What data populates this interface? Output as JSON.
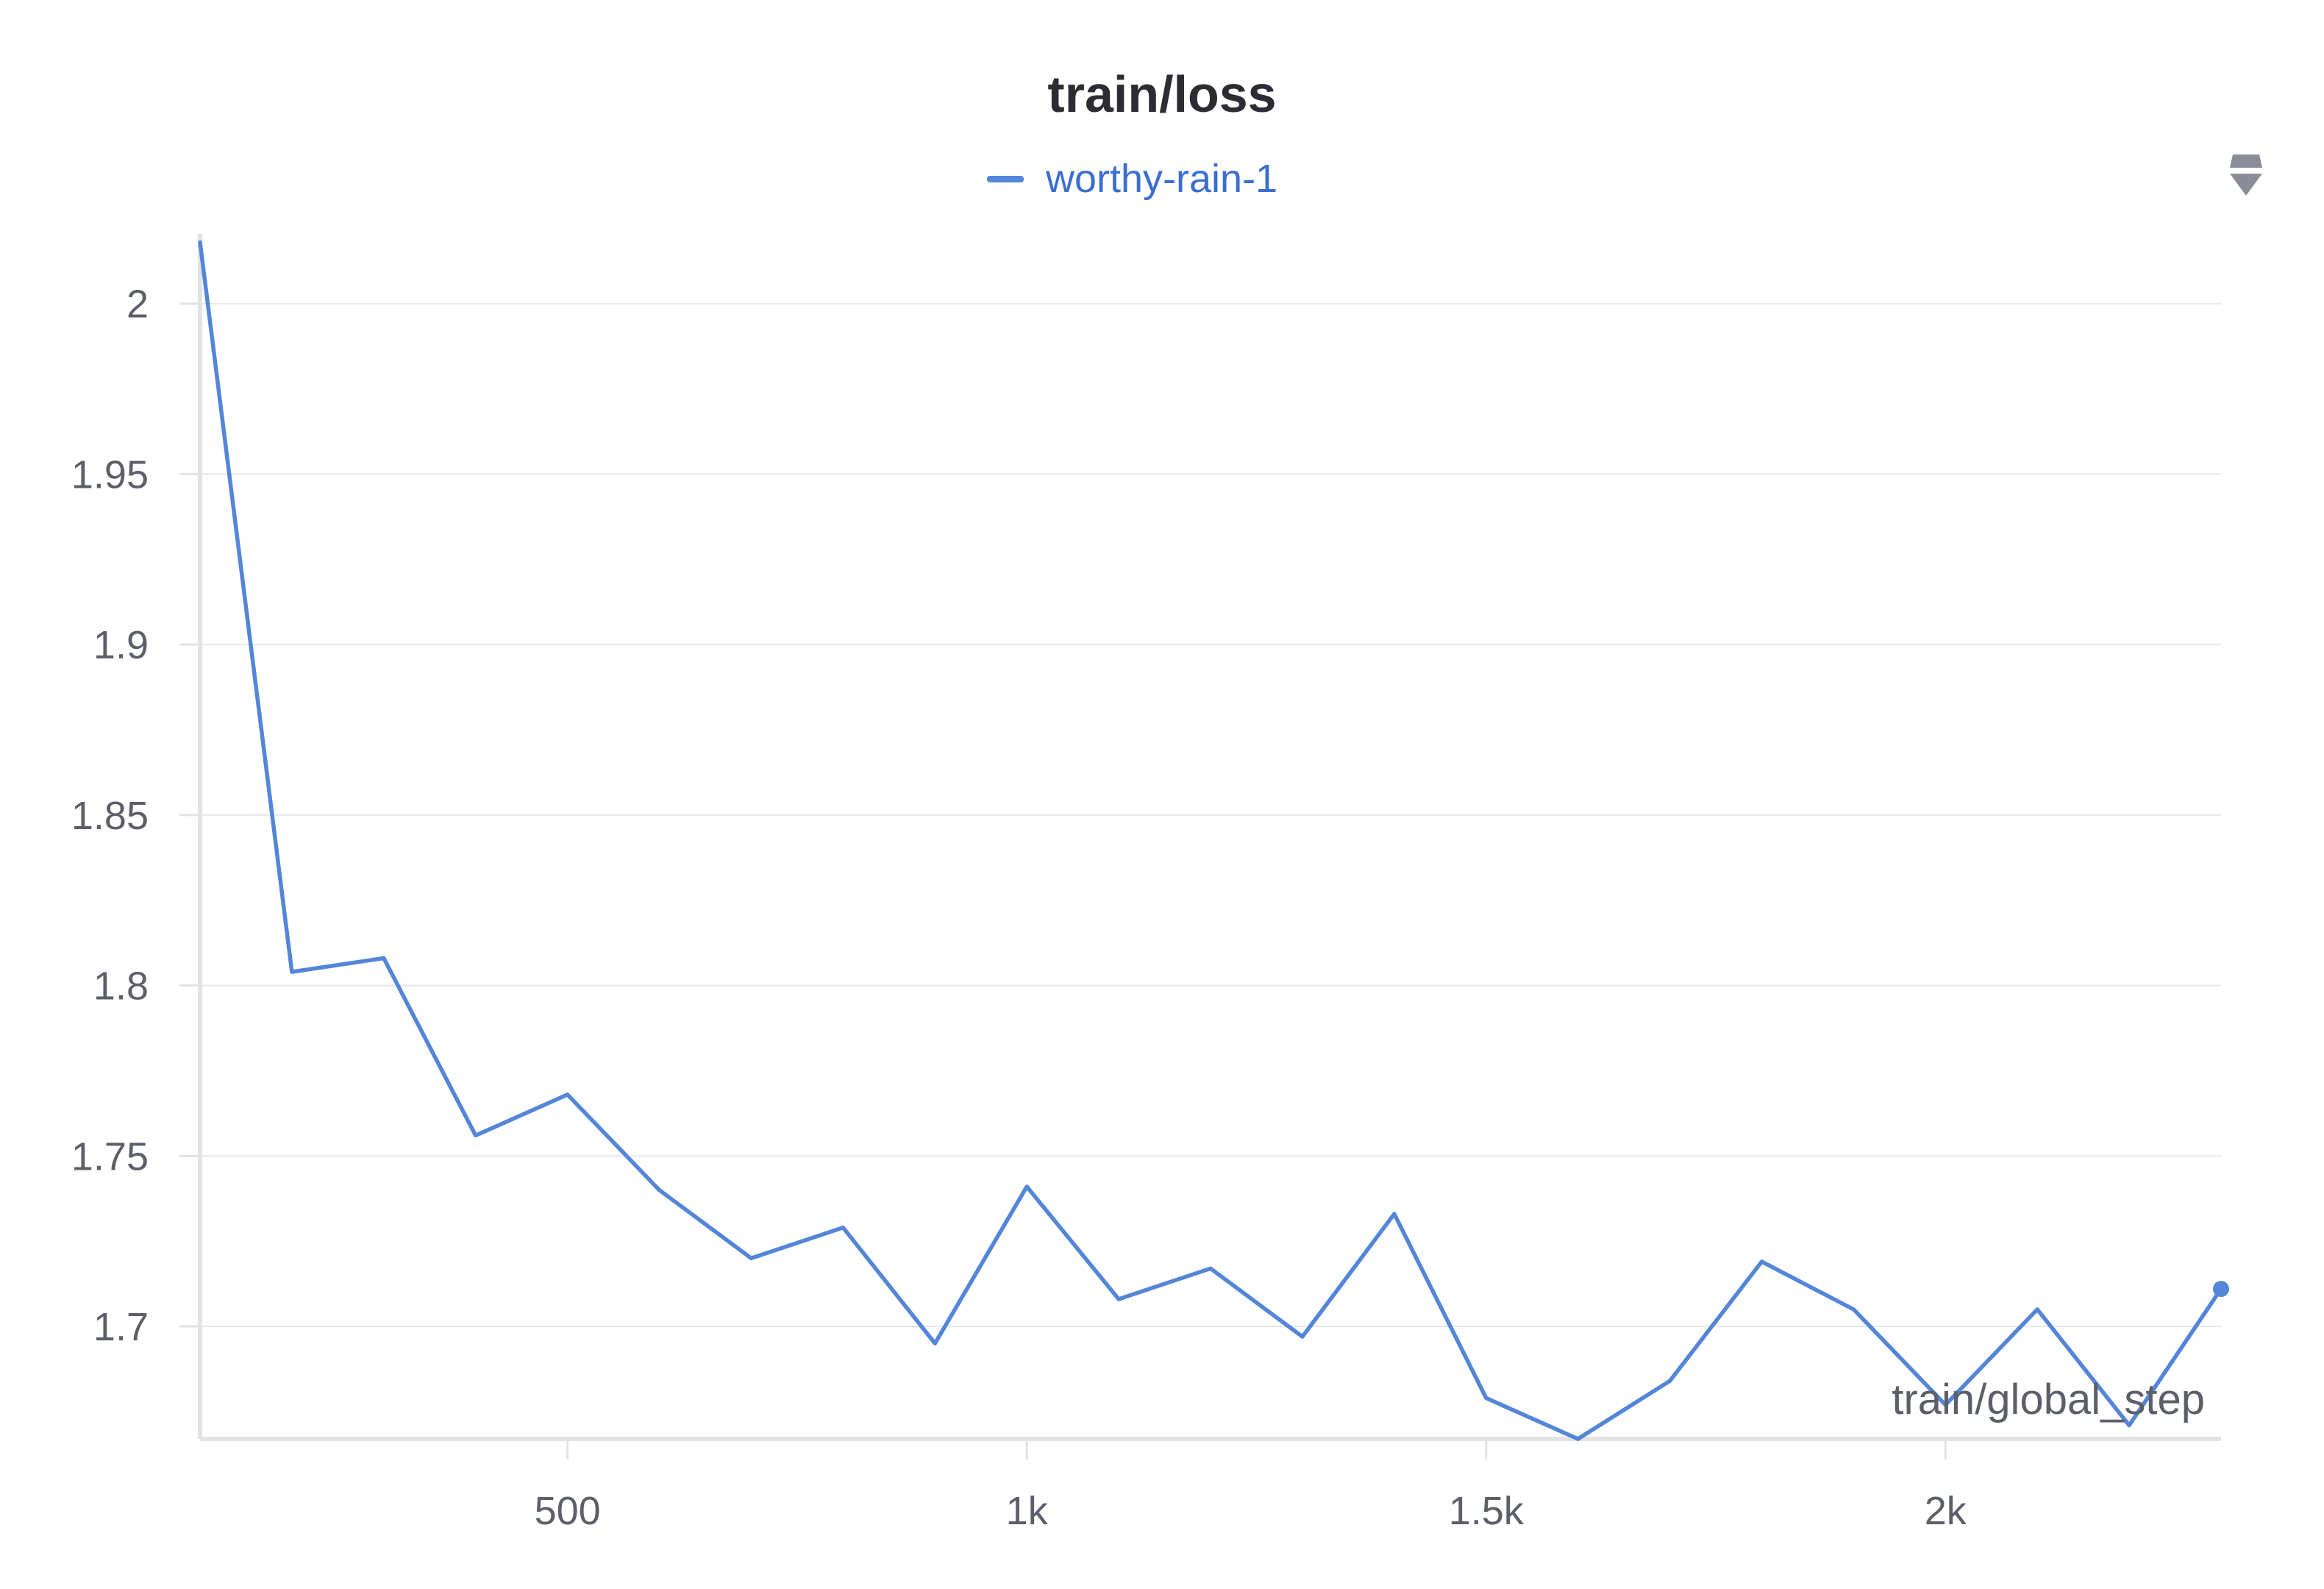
{
  "chart_data": {
    "type": "line",
    "title": "train/loss",
    "xlabel": "train/global_step",
    "ylabel": "",
    "xlim": [
      100,
      2300
    ],
    "ylim": [
      1.667,
      2.02
    ],
    "x_ticks": [
      500,
      1000,
      1500,
      2000
    ],
    "x_tick_labels": [
      "500",
      "1k",
      "1.5k",
      "2k"
    ],
    "y_ticks": [
      1.7,
      1.75,
      1.8,
      1.85,
      1.9,
      1.95,
      2.0
    ],
    "y_tick_labels": [
      "1.7",
      "1.75",
      "1.8",
      "1.85",
      "1.9",
      "1.95",
      "2"
    ],
    "grid": true,
    "legend_position": "top-center",
    "series": [
      {
        "name": "worthy-rain-1",
        "color": "#5386d8",
        "x": [
          100,
          200,
          300,
          400,
          500,
          600,
          700,
          800,
          900,
          1000,
          1100,
          1200,
          1300,
          1400,
          1500,
          1600,
          1700,
          1800,
          1900,
          2000,
          2100,
          2200,
          2300
        ],
        "y": [
          2.018,
          1.804,
          1.808,
          1.756,
          1.768,
          1.74,
          1.72,
          1.729,
          1.695,
          1.741,
          1.708,
          1.717,
          1.697,
          1.733,
          1.679,
          1.667,
          1.684,
          1.719,
          1.705,
          1.677,
          1.705,
          1.671,
          1.711
        ]
      }
    ]
  },
  "legend_color": "#3a6fd0",
  "menu_icon": "drag-handle-icon"
}
